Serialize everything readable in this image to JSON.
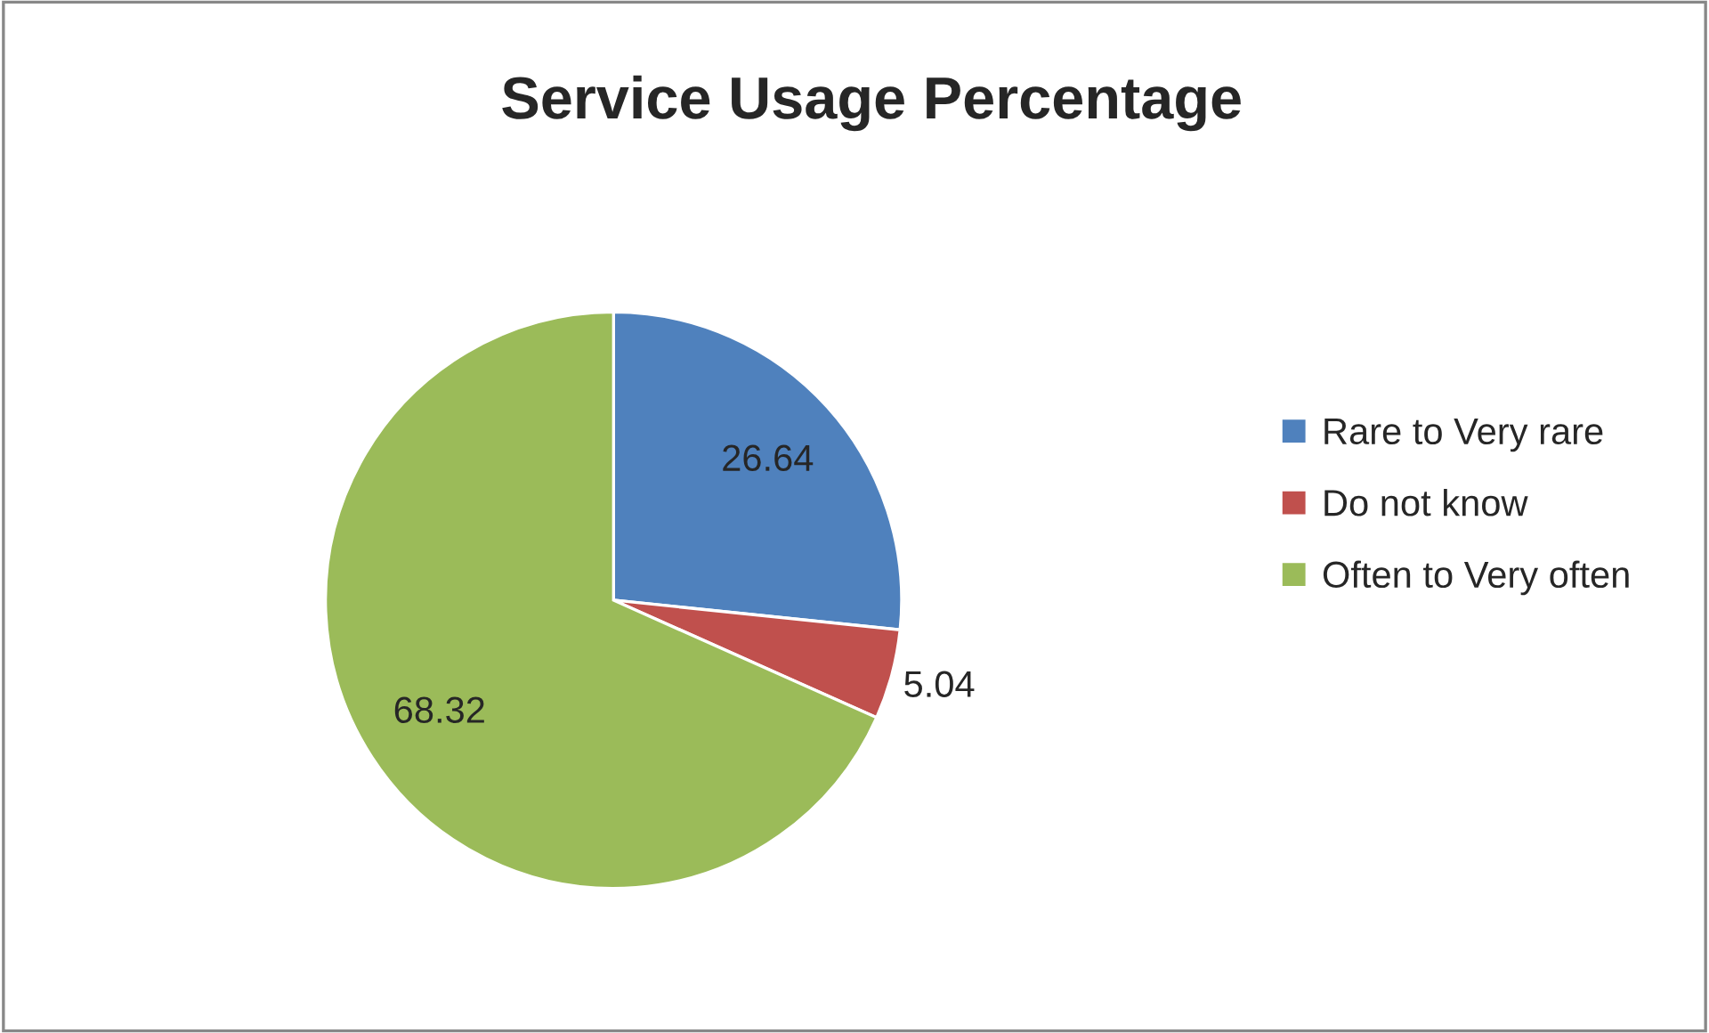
{
  "chart_data": {
    "type": "pie",
    "title": "Service Usage Percentage",
    "categories": [
      "Rare to Very rare",
      "Do not know",
      "Often to Very often"
    ],
    "values": [
      26.64,
      5.04,
      68.32
    ],
    "colors": [
      "#4f81bd",
      "#c0504d",
      "#9bbb59"
    ],
    "data_labels": true,
    "legend": "right"
  }
}
